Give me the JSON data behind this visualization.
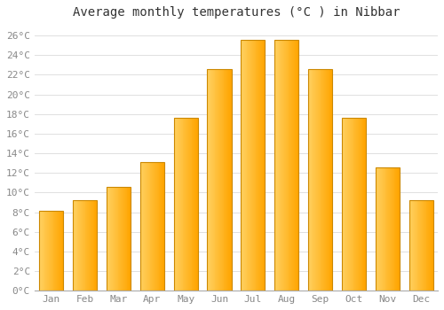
{
  "title": "Average monthly temperatures (°C ) in Nibbar",
  "months": [
    "Jan",
    "Feb",
    "Mar",
    "Apr",
    "May",
    "Jun",
    "Jul",
    "Aug",
    "Sep",
    "Oct",
    "Nov",
    "Dec"
  ],
  "values": [
    8.1,
    9.2,
    10.6,
    13.1,
    17.6,
    22.6,
    25.6,
    25.6,
    22.6,
    17.6,
    12.6,
    9.2
  ],
  "bar_color_main": "#FFA500",
  "bar_color_light": "#FFD060",
  "bar_edge_color": "#CC8800",
  "background_color": "#FFFFFF",
  "grid_color": "#E0E0E0",
  "title_fontsize": 10,
  "tick_fontsize": 8,
  "tick_color": "#888888",
  "ylim": [
    0,
    27
  ],
  "yticks": [
    0,
    2,
    4,
    6,
    8,
    10,
    12,
    14,
    16,
    18,
    20,
    22,
    24,
    26
  ],
  "bar_width": 0.72
}
